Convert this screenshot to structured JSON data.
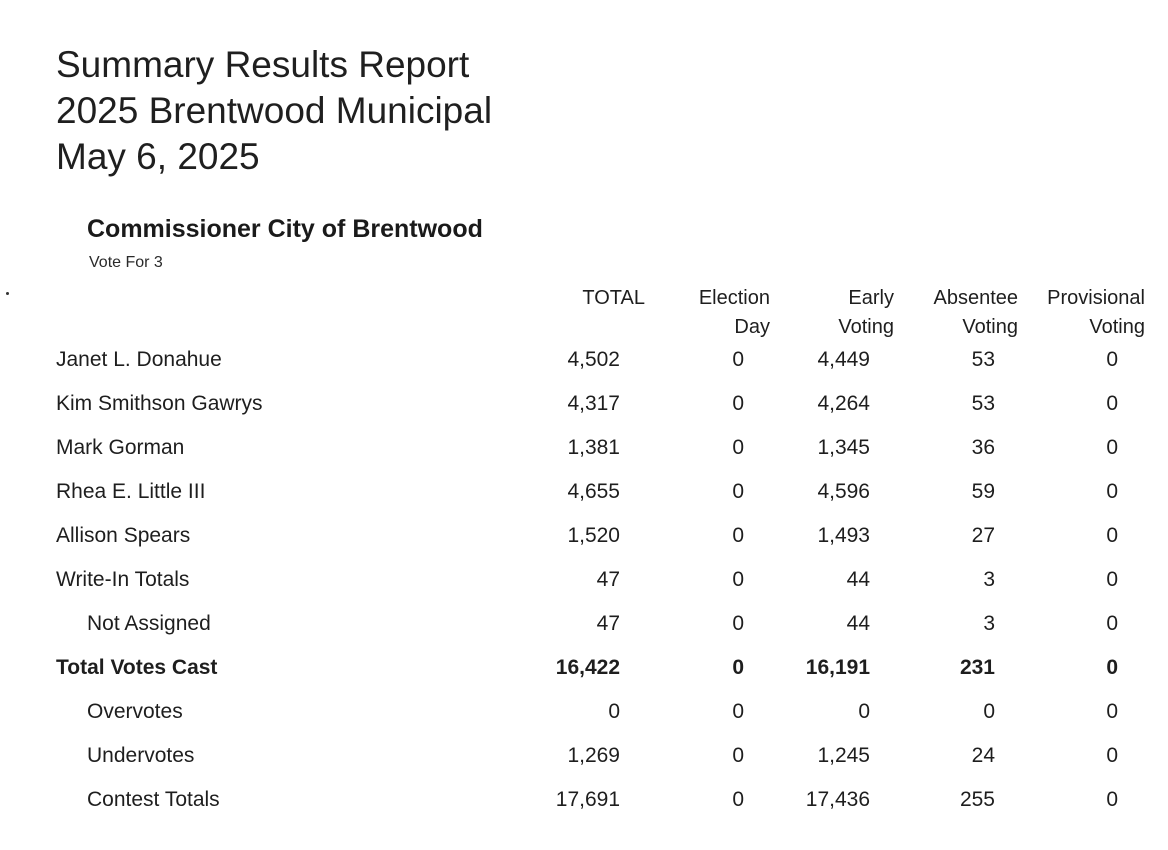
{
  "report": {
    "title_line1": "Summary Results Report",
    "title_line2": "2025 Brentwood Municipal",
    "title_line3": "May 6, 2025"
  },
  "contest": {
    "name": "Commissioner City of Brentwood",
    "vote_for": "Vote For 3"
  },
  "columns": {
    "total": "TOTAL",
    "election_day_1": "Election",
    "election_day_2": "Day",
    "early_voting_1": "Early",
    "early_voting_2": "Voting",
    "absentee_voting_1": "Absentee",
    "absentee_voting_2": "Voting",
    "provisional_voting_1": "Provisional",
    "provisional_voting_2": "Voting"
  },
  "rows": [
    {
      "label": "Janet L. Donahue",
      "total": "4,502",
      "election_day": "0",
      "early_voting": "4,449",
      "absentee_voting": "53",
      "provisional_voting": "0"
    },
    {
      "label": "Kim Smithson Gawrys",
      "total": "4,317",
      "election_day": "0",
      "early_voting": "4,264",
      "absentee_voting": "53",
      "provisional_voting": "0"
    },
    {
      "label": "Mark Gorman",
      "total": "1,381",
      "election_day": "0",
      "early_voting": "1,345",
      "absentee_voting": "36",
      "provisional_voting": "0"
    },
    {
      "label": "Rhea E. Little III",
      "total": "4,655",
      "election_day": "0",
      "early_voting": "4,596",
      "absentee_voting": "59",
      "provisional_voting": "0"
    },
    {
      "label": "Allison Spears",
      "total": "1,520",
      "election_day": "0",
      "early_voting": "1,493",
      "absentee_voting": "27",
      "provisional_voting": "0"
    },
    {
      "label": "Write-In Totals",
      "total": "47",
      "election_day": "0",
      "early_voting": "44",
      "absentee_voting": "3",
      "provisional_voting": "0"
    },
    {
      "label": "Not Assigned",
      "total": "47",
      "election_day": "0",
      "early_voting": "44",
      "absentee_voting": "3",
      "provisional_voting": "0"
    },
    {
      "label": "Total Votes Cast",
      "total": "16,422",
      "election_day": "0",
      "early_voting": "16,191",
      "absentee_voting": "231",
      "provisional_voting": "0"
    },
    {
      "label": "Overvotes",
      "total": "0",
      "election_day": "0",
      "early_voting": "0",
      "absentee_voting": "0",
      "provisional_voting": "0"
    },
    {
      "label": "Undervotes",
      "total": "1,269",
      "election_day": "0",
      "early_voting": "1,245",
      "absentee_voting": "24",
      "provisional_voting": "0"
    },
    {
      "label": "Contest Totals",
      "total": "17,691",
      "election_day": "0",
      "early_voting": "17,436",
      "absentee_voting": "255",
      "provisional_voting": "0"
    }
  ]
}
